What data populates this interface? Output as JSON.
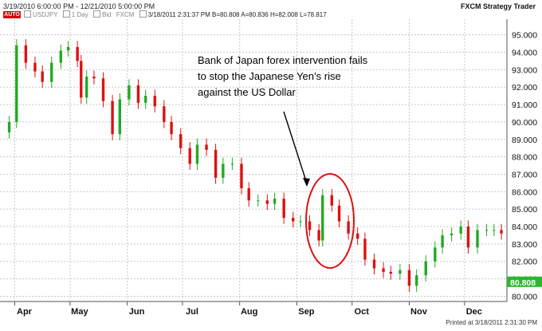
{
  "header": {
    "date_range": "3/19/2010 6:00:00 PM - 12/21/2010 5:00:00 PM",
    "product": "FXCM Strategy Trader",
    "auto_label": "AUTO",
    "symbol": "USDJPY",
    "interval": "1 Day",
    "bid": "Bid",
    "feed": "FXCM",
    "stamp": "3/18/2011  2:31:37 PM  B=80.808  A=80.836  H=82.008  L=78.817"
  },
  "footer": {
    "printed": "Printed at 3/18/2011 2:31:30 PM"
  },
  "colors": {
    "up": "#22aa22",
    "down": "#dd1111",
    "grid": "#c8c8c8",
    "last_price_bg": "#2db52d",
    "circle": "#dd1111"
  },
  "annotation": {
    "line1": "Bank of Japan forex intervention fails",
    "line2": "to stop the Japanese Yen’s rise",
    "line3": "against the US Dollar"
  },
  "chart_data": {
    "type": "candlestick",
    "title": "",
    "xlabel": "",
    "ylabel": "",
    "ylim": [
      79.7,
      95.9
    ],
    "yticks": [
      "80.000",
      "81.000",
      "82.000",
      "83.000",
      "84.000",
      "85.000",
      "86.000",
      "87.000",
      "88.000",
      "89.000",
      "90.000",
      "91.000",
      "92.000",
      "93.000",
      "94.000",
      "95.000"
    ],
    "months": [
      "Apr",
      "May",
      "Jun",
      "Jul",
      "Aug",
      "Sep",
      "Oct",
      "Nov",
      "Dec"
    ],
    "last_price": "80.808",
    "grid": true,
    "series": [
      {
        "x": "2010-03-29",
        "close": 90.0
      },
      {
        "x": "2010-04-02",
        "close": 94.4
      },
      {
        "x": "2010-04-07",
        "close": 93.4
      },
      {
        "x": "2010-04-12",
        "close": 92.9
      },
      {
        "x": "2010-04-16",
        "close": 92.3
      },
      {
        "x": "2010-04-21",
        "close": 93.4
      },
      {
        "x": "2010-04-26",
        "close": 94.1
      },
      {
        "x": "2010-04-30",
        "close": 94.3
      },
      {
        "x": "2010-05-05",
        "close": 93.5
      },
      {
        "x": "2010-05-07",
        "close": 91.4
      },
      {
        "x": "2010-05-10",
        "close": 92.6
      },
      {
        "x": "2010-05-14",
        "close": 92.5
      },
      {
        "x": "2010-05-19",
        "close": 91.2
      },
      {
        "x": "2010-05-24",
        "close": 89.3
      },
      {
        "x": "2010-05-28",
        "close": 91.3
      },
      {
        "x": "2010-06-02",
        "close": 92.1
      },
      {
        "x": "2010-06-07",
        "close": 91.1
      },
      {
        "x": "2010-06-11",
        "close": 91.5
      },
      {
        "x": "2010-06-16",
        "close": 90.9
      },
      {
        "x": "2010-06-21",
        "close": 90.0
      },
      {
        "x": "2010-06-25",
        "close": 89.3
      },
      {
        "x": "2010-06-30",
        "close": 88.5
      },
      {
        "x": "2010-07-05",
        "close": 87.6
      },
      {
        "x": "2010-07-09",
        "close": 88.7
      },
      {
        "x": "2010-07-14",
        "close": 88.4
      },
      {
        "x": "2010-07-19",
        "close": 86.8
      },
      {
        "x": "2010-07-23",
        "close": 87.6
      },
      {
        "x": "2010-07-28",
        "close": 87.6
      },
      {
        "x": "2010-08-02",
        "close": 86.2
      },
      {
        "x": "2010-08-06",
        "close": 85.5
      },
      {
        "x": "2010-08-11",
        "close": 85.5
      },
      {
        "x": "2010-08-16",
        "close": 85.3
      },
      {
        "x": "2010-08-20",
        "close": 85.6
      },
      {
        "x": "2010-08-25",
        "close": 84.5
      },
      {
        "x": "2010-08-30",
        "close": 84.3
      },
      {
        "x": "2010-09-03",
        "close": 84.3
      },
      {
        "x": "2010-09-08",
        "close": 83.8
      },
      {
        "x": "2010-09-13",
        "close": 83.2
      },
      {
        "x": "2010-09-15",
        "close": 85.8
      },
      {
        "x": "2010-09-20",
        "close": 85.2
      },
      {
        "x": "2010-09-24",
        "close": 84.3
      },
      {
        "x": "2010-09-29",
        "close": 83.6
      },
      {
        "x": "2010-10-04",
        "close": 83.3
      },
      {
        "x": "2010-10-08",
        "close": 82.1
      },
      {
        "x": "2010-10-13",
        "close": 81.6
      },
      {
        "x": "2010-10-18",
        "close": 81.4
      },
      {
        "x": "2010-10-22",
        "close": 81.3
      },
      {
        "x": "2010-10-27",
        "close": 81.5
      },
      {
        "x": "2010-11-01",
        "close": 80.6
      },
      {
        "x": "2010-11-05",
        "close": 81.2
      },
      {
        "x": "2010-11-10",
        "close": 82.0
      },
      {
        "x": "2010-11-15",
        "close": 82.8
      },
      {
        "x": "2010-11-19",
        "close": 83.5
      },
      {
        "x": "2010-11-24",
        "close": 83.6
      },
      {
        "x": "2010-11-29",
        "close": 84.0
      },
      {
        "x": "2010-12-03",
        "close": 82.8
      },
      {
        "x": "2010-12-08",
        "close": 83.8
      },
      {
        "x": "2010-12-13",
        "close": 83.8
      },
      {
        "x": "2010-12-17",
        "close": 83.8
      },
      {
        "x": "2010-12-21",
        "close": 83.6
      }
    ]
  }
}
